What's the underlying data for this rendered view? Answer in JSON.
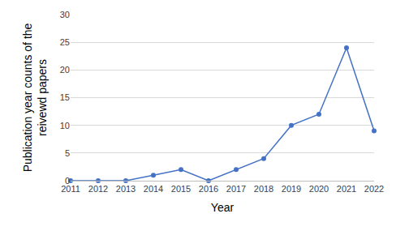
{
  "chart_data": {
    "type": "line",
    "x_label": "Year",
    "y_label": "Publication year counts of the\nreivewd papers",
    "x": [
      2011,
      2012,
      2013,
      2014,
      2015,
      2016,
      2017,
      2018,
      2019,
      2020,
      2021,
      2022
    ],
    "values": [
      0,
      0,
      0,
      1,
      2,
      0,
      2,
      4,
      10,
      12,
      24,
      9
    ],
    "color": "#4472c4",
    "marker": "circle",
    "xlim": [
      2011,
      2022
    ],
    "xticks": [
      2011,
      2012,
      2013,
      2014,
      2015,
      2016,
      2017,
      2018,
      2019,
      2020,
      2021,
      2022
    ],
    "ylim": [
      0,
      30
    ],
    "yticks": [
      0,
      5,
      10,
      15,
      20,
      25,
      30
    ],
    "grid": true
  }
}
